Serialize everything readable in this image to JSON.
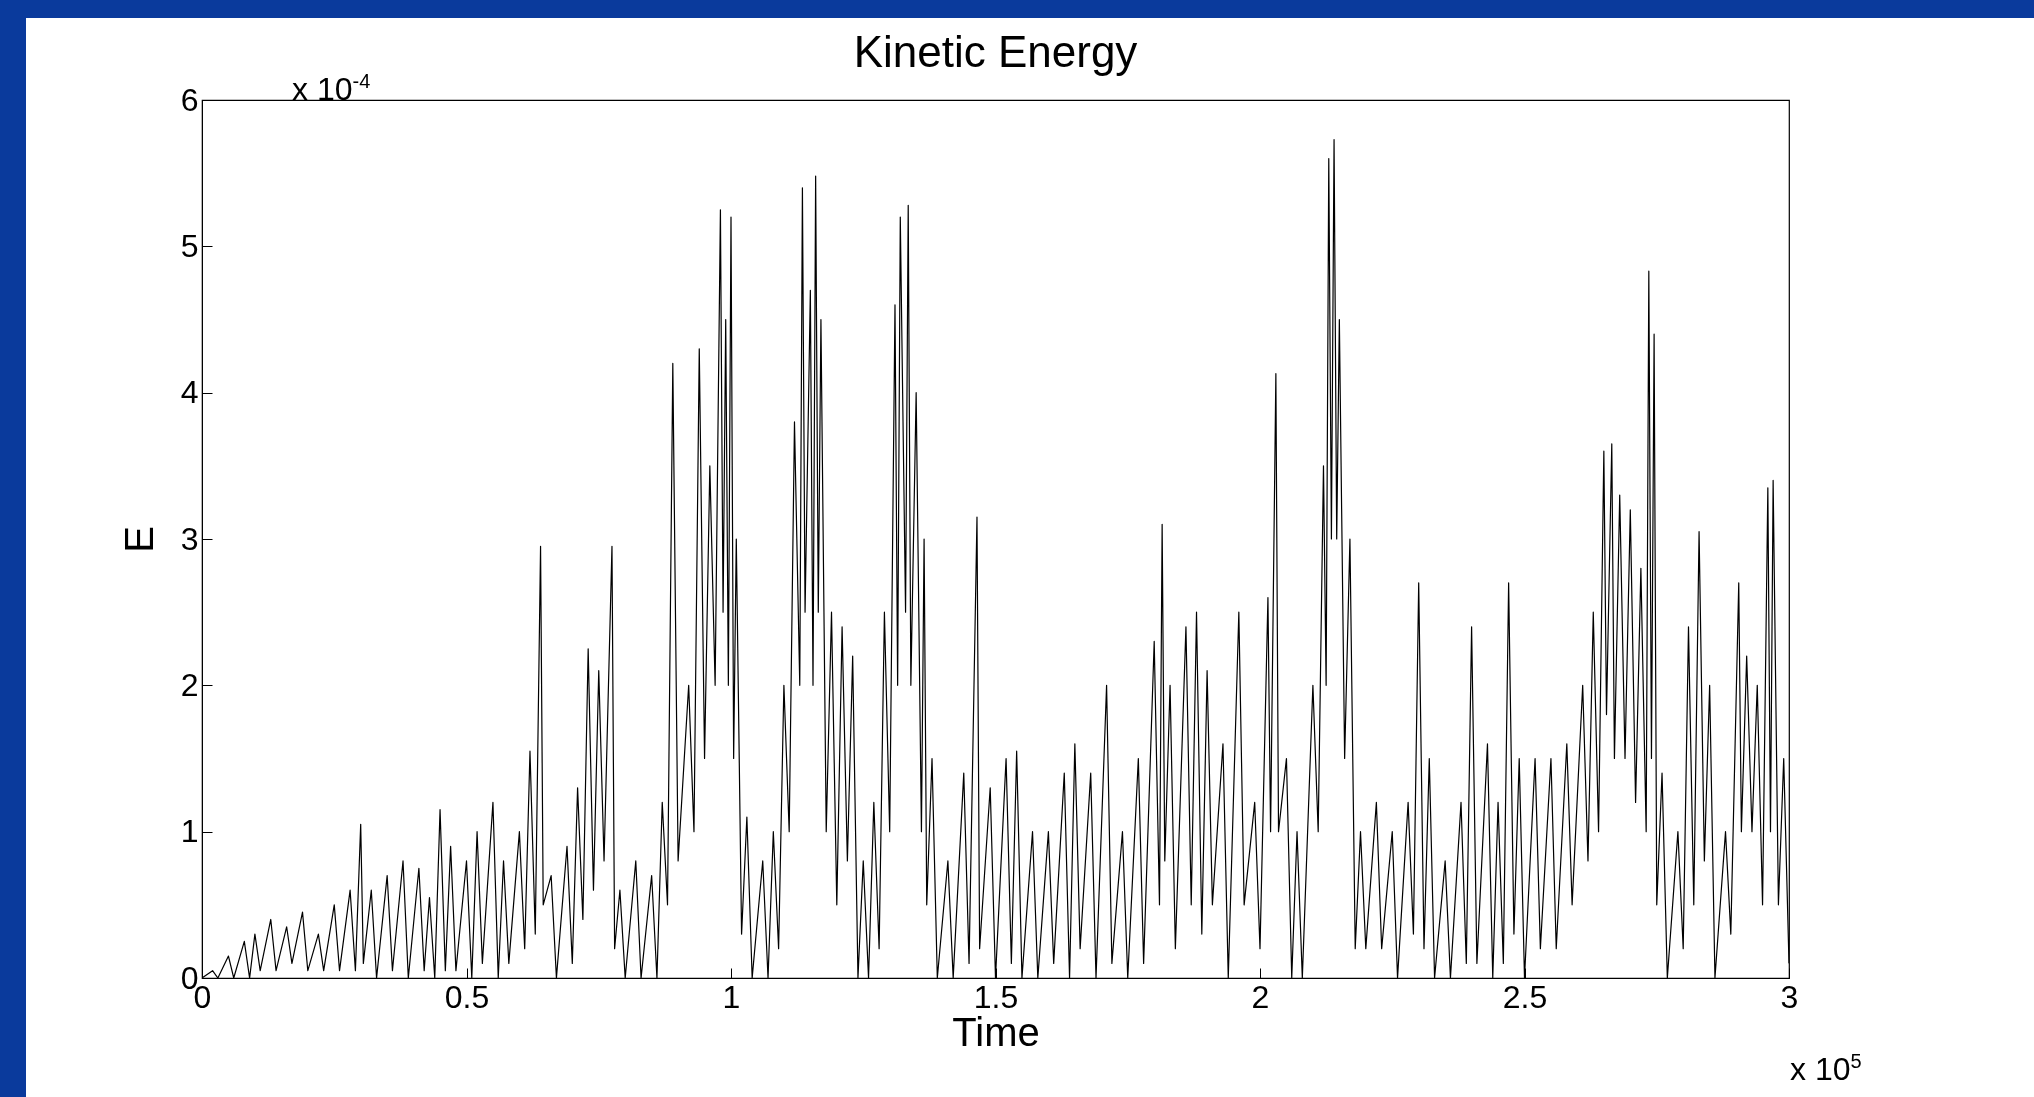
{
  "chart_data": {
    "type": "line",
    "title": "Kinetic Energy",
    "xlabel": "Time",
    "ylabel": "E",
    "annotations": [
      "x 10$^{-4}$",
      "x 10$^{5}$"
    ],
    "x": [
      0,
      0.02,
      0.03,
      0.05,
      0.06,
      0.08,
      0.09,
      0.1,
      0.11,
      0.13,
      0.14,
      0.16,
      0.17,
      0.19,
      0.2,
      0.22,
      0.23,
      0.25,
      0.26,
      0.28,
      0.29,
      0.3,
      0.305,
      0.32,
      0.33,
      0.35,
      0.36,
      0.38,
      0.39,
      0.41,
      0.42,
      0.43,
      0.44,
      0.45,
      0.46,
      0.47,
      0.48,
      0.5,
      0.51,
      0.52,
      0.53,
      0.55,
      0.56,
      0.57,
      0.58,
      0.6,
      0.61,
      0.62,
      0.63,
      0.64,
      0.645,
      0.66,
      0.67,
      0.69,
      0.7,
      0.71,
      0.72,
      0.73,
      0.74,
      0.75,
      0.76,
      0.775,
      0.78,
      0.79,
      0.8,
      0.82,
      0.83,
      0.85,
      0.86,
      0.87,
      0.88,
      0.89,
      0.9,
      0.92,
      0.93,
      0.94,
      0.95,
      0.96,
      0.97,
      0.98,
      0.985,
      0.99,
      0.995,
      1,
      1.005,
      1.01,
      1.02,
      1.03,
      1.04,
      1.06,
      1.07,
      1.08,
      1.09,
      1.1,
      1.11,
      1.12,
      1.13,
      1.135,
      1.14,
      1.15,
      1.155,
      1.16,
      1.165,
      1.17,
      1.18,
      1.19,
      1.2,
      1.21,
      1.22,
      1.23,
      1.24,
      1.25,
      1.26,
      1.27,
      1.28,
      1.29,
      1.3,
      1.31,
      1.315,
      1.32,
      1.33,
      1.335,
      1.34,
      1.35,
      1.36,
      1.365,
      1.37,
      1.38,
      1.39,
      1.41,
      1.42,
      1.44,
      1.45,
      1.465,
      1.47,
      1.49,
      1.5,
      1.52,
      1.53,
      1.54,
      1.55,
      1.57,
      1.58,
      1.6,
      1.61,
      1.63,
      1.64,
      1.65,
      1.66,
      1.68,
      1.69,
      1.71,
      1.72,
      1.74,
      1.75,
      1.77,
      1.78,
      1.8,
      1.81,
      1.815,
      1.82,
      1.83,
      1.84,
      1.86,
      1.87,
      1.88,
      1.89,
      1.9,
      1.91,
      1.93,
      1.94,
      1.96,
      1.97,
      1.99,
      2,
      2.015,
      2.02,
      2.03,
      2.035,
      2.05,
      2.06,
      2.07,
      2.08,
      2.1,
      2.11,
      2.12,
      2.125,
      2.13,
      2.135,
      2.14,
      2.145,
      2.15,
      2.16,
      2.17,
      2.18,
      2.19,
      2.2,
      2.22,
      2.23,
      2.25,
      2.26,
      2.28,
      2.29,
      2.3,
      2.31,
      2.32,
      2.33,
      2.35,
      2.36,
      2.38,
      2.39,
      2.4,
      2.41,
      2.43,
      2.44,
      2.45,
      2.46,
      2.47,
      2.48,
      2.49,
      2.5,
      2.52,
      2.53,
      2.55,
      2.56,
      2.58,
      2.59,
      2.61,
      2.62,
      2.63,
      2.64,
      2.65,
      2.655,
      2.665,
      2.67,
      2.68,
      2.69,
      2.7,
      2.71,
      2.72,
      2.73,
      2.735,
      2.74,
      2.745,
      2.75,
      2.76,
      2.77,
      2.79,
      2.8,
      2.81,
      2.82,
      2.83,
      2.84,
      2.85,
      2.86,
      2.88,
      2.89,
      2.905,
      2.91,
      2.92,
      2.93,
      2.94,
      2.95,
      2.96,
      2.965,
      2.97,
      2.98,
      2.99,
      3
    ],
    "series": [
      {
        "color": "#000000",
        "values": [
          0,
          0.05,
          0,
          0.15,
          0,
          0.25,
          0,
          0.3,
          0.05,
          0.4,
          0.05,
          0.35,
          0.1,
          0.45,
          0.05,
          0.3,
          0.05,
          0.5,
          0.05,
          0.6,
          0.05,
          1.05,
          0.1,
          0.6,
          0,
          0.7,
          0.05,
          0.8,
          0,
          0.75,
          0.05,
          0.55,
          0,
          1.15,
          0.05,
          0.9,
          0.05,
          0.8,
          0,
          1,
          0.1,
          1.2,
          0,
          0.8,
          0.1,
          1,
          0.2,
          1.55,
          0.3,
          2.95,
          0.5,
          0.7,
          0,
          0.9,
          0.1,
          1.3,
          0.4,
          2.25,
          0.6,
          2.1,
          0.8,
          2.95,
          0.2,
          0.6,
          0,
          0.8,
          0,
          0.7,
          0,
          1.2,
          0.5,
          4.2,
          0.8,
          2,
          1,
          4.3,
          1.5,
          3.5,
          2,
          5.25,
          2.5,
          4.5,
          2,
          5.2,
          1.5,
          3,
          0.3,
          1.1,
          0,
          0.8,
          0,
          1,
          0.2,
          2,
          1,
          3.8,
          2,
          5.4,
          2.5,
          4.7,
          2,
          5.48,
          2.5,
          4.5,
          1,
          2.5,
          0.5,
          2.4,
          0.8,
          2.2,
          0,
          0.8,
          0,
          1.2,
          0.2,
          2.5,
          1,
          4.6,
          2,
          5.2,
          2.5,
          5.28,
          2,
          4,
          1,
          3,
          0.5,
          1.5,
          0,
          0.8,
          0,
          1.4,
          0.1,
          3.15,
          0.2,
          1.3,
          0,
          1.5,
          0.1,
          1.55,
          0,
          1,
          0,
          1,
          0.1,
          1.4,
          0,
          1.6,
          0.2,
          1.4,
          0,
          2,
          0.1,
          1,
          0,
          1.5,
          0.1,
          2.3,
          0.5,
          3.1,
          0.8,
          2,
          0.2,
          2.4,
          0.5,
          2.5,
          0.3,
          2.1,
          0.5,
          1.6,
          0,
          2.5,
          0.5,
          1.2,
          0.2,
          2.6,
          1,
          4.13,
          1,
          1.5,
          0,
          1,
          0,
          2,
          1,
          3.5,
          2,
          5.6,
          3,
          5.73,
          3,
          4.5,
          1.5,
          3,
          0.2,
          1,
          0.2,
          1.2,
          0.2,
          1,
          0,
          1.2,
          0.3,
          2.7,
          0.2,
          1.5,
          0,
          0.8,
          0,
          1.2,
          0.1,
          2.4,
          0.1,
          1.6,
          0,
          1.2,
          0.1,
          2.7,
          0.3,
          1.5,
          0,
          1.5,
          0.2,
          1.5,
          0.2,
          1.6,
          0.5,
          2,
          0.8,
          2.5,
          1,
          3.6,
          1.8,
          3.65,
          1.5,
          3.3,
          1.5,
          3.2,
          1.2,
          2.8,
          1,
          4.83,
          1.5,
          4.4,
          0.5,
          1.4,
          0,
          1,
          0.2,
          2.4,
          0.5,
          3.05,
          0.8,
          2,
          0,
          1,
          0.3,
          2.7,
          1,
          2.2,
          1,
          2,
          0.5,
          3.35,
          1,
          3.4,
          0.5,
          1.5,
          0.1
        ]
      }
    ],
    "xlim": [
      0,
      3
    ],
    "ylim": [
      0,
      6
    ],
    "xticks": [
      0,
      0.5,
      1,
      1.5,
      2,
      2.5,
      3
    ],
    "yticks": [
      0,
      1,
      2,
      3,
      4,
      5,
      6
    ],
    "grid": false,
    "marker": "none",
    "line_style": "solid"
  }
}
